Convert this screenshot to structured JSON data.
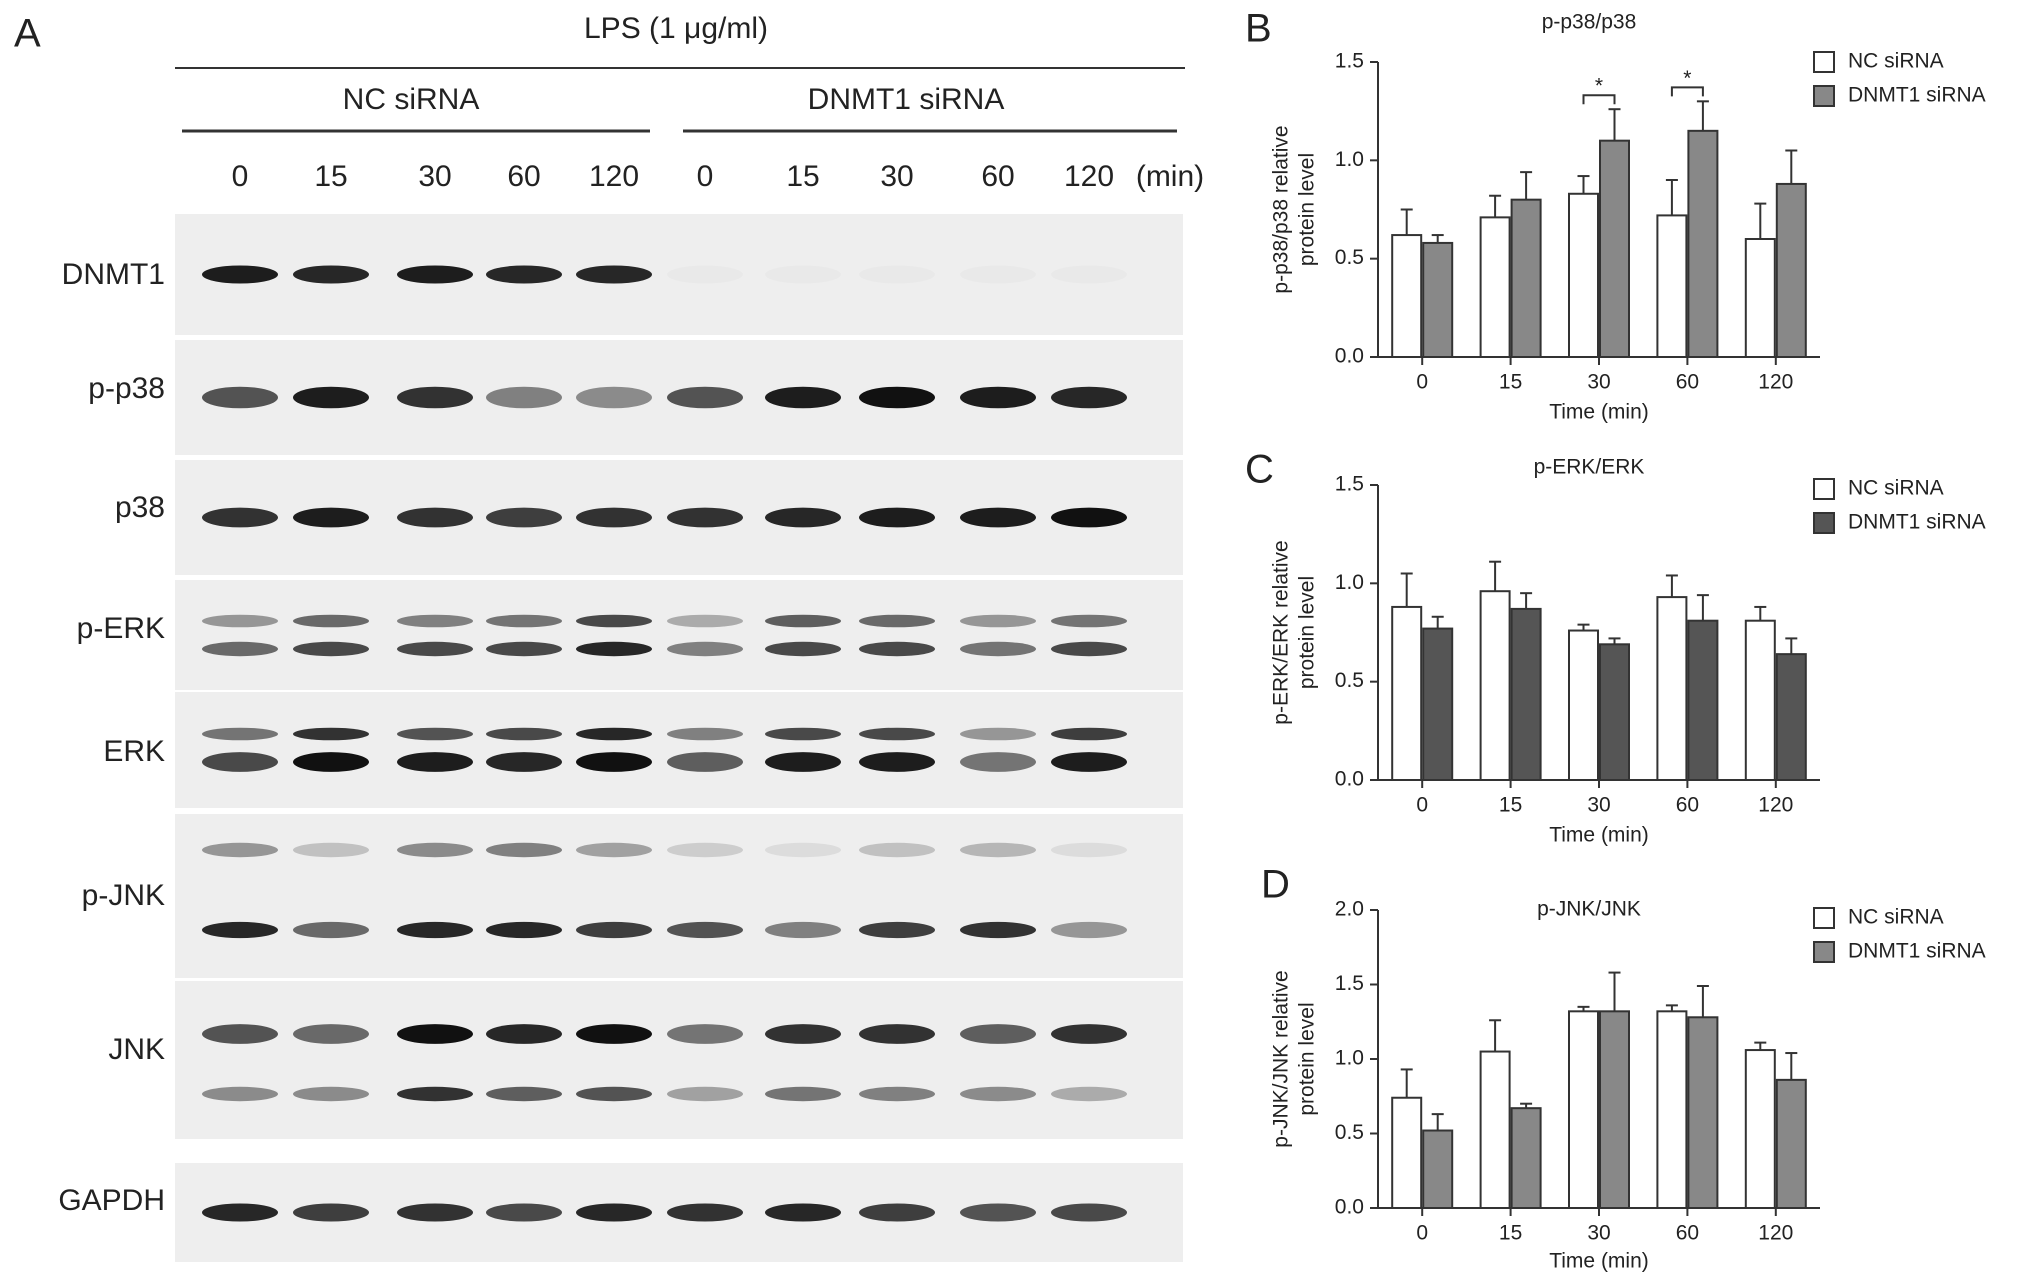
{
  "blot": {
    "panel": "A",
    "header": "LPS (1 μg/ml)",
    "groups": [
      "NC siRNA",
      "DNMT1 siRNA"
    ],
    "lanes": [
      "0",
      "15",
      "30",
      "60",
      "120",
      "0",
      "15",
      "30",
      "60",
      "120"
    ],
    "lane_unit": "(min)",
    "rows": [
      "DNMT1",
      "p-p38",
      "p38",
      "p-ERK",
      "ERK",
      "p-JNK",
      "JNK",
      "GAPDH"
    ]
  },
  "chart_data": [
    {
      "type": "bar",
      "panel": "B",
      "title": "p-p38/p38",
      "ylabel": [
        "p-p38/p38 relative",
        "protein level"
      ],
      "xlabel": "Time (min)",
      "categories": [
        "0",
        "15",
        "30",
        "60",
        "120"
      ],
      "series": [
        {
          "name": "NC siRNA",
          "color": "#ffffff",
          "values": [
            0.62,
            0.71,
            0.83,
            0.72,
            0.6
          ],
          "errors": [
            0.13,
            0.11,
            0.09,
            0.18,
            0.18
          ]
        },
        {
          "name": "DNMT1 siRNA",
          "color": "#888888",
          "values": [
            0.58,
            0.8,
            1.1,
            1.15,
            0.88
          ],
          "errors": [
            0.04,
            0.14,
            0.16,
            0.15,
            0.17
          ]
        }
      ],
      "annotations": [
        {
          "text": "*",
          "category": "30"
        },
        {
          "text": "*",
          "category": "60"
        }
      ],
      "ylim": [
        0,
        1.5
      ],
      "yticks": [
        {
          "value": 0,
          "label": "0.0"
        },
        0.5,
        {
          "value": 1,
          "label": "1.0"
        },
        1.5
      ],
      "legend": "right"
    },
    {
      "type": "bar",
      "panel": "C",
      "title": "p-ERK/ERK",
      "ylabel": [
        "p-ERK/ERK relative",
        "protein level"
      ],
      "xlabel": "Time (min)",
      "categories": [
        "0",
        "15",
        "30",
        "60",
        "120"
      ],
      "series": [
        {
          "name": "NC siRNA",
          "color": "#ffffff",
          "values": [
            0.88,
            0.96,
            0.76,
            0.93,
            0.81
          ],
          "errors": [
            0.17,
            0.15,
            0.03,
            0.11,
            0.07
          ]
        },
        {
          "name": "DNMT1 siRNA",
          "color": "#555555",
          "values": [
            0.77,
            0.87,
            0.69,
            0.81,
            0.64
          ],
          "errors": [
            0.06,
            0.08,
            0.03,
            0.13,
            0.08
          ]
        }
      ],
      "ylim": [
        0,
        1.5
      ],
      "yticks": [
        {
          "value": 0,
          "label": "0.0"
        },
        0.5,
        {
          "value": 1,
          "label": "1.0"
        },
        1.5
      ],
      "legend": "right"
    },
    {
      "type": "bar",
      "panel": "D",
      "title": "p-JNK/JNK",
      "ylabel": [
        "p-JNK/JNK relative",
        "protein level"
      ],
      "xlabel": "Time (min)",
      "categories": [
        "0",
        "15",
        "30",
        "60",
        "120"
      ],
      "series": [
        {
          "name": "NC siRNA",
          "color": "#ffffff",
          "values": [
            0.74,
            1.05,
            1.32,
            1.32,
            1.06
          ],
          "errors": [
            0.19,
            0.21,
            0.03,
            0.04,
            0.05
          ]
        },
        {
          "name": "DNMT1 siRNA",
          "color": "#888888",
          "values": [
            0.52,
            0.67,
            1.32,
            1.28,
            0.86
          ],
          "errors": [
            0.11,
            0.03,
            0.26,
            0.21,
            0.18
          ]
        }
      ],
      "ylim": [
        0,
        2
      ],
      "yticks": [
        {
          "value": 0,
          "label": "0.0"
        },
        0.5,
        {
          "value": 1,
          "label": "1.0"
        },
        1.5,
        {
          "value": 2,
          "label": "2.0"
        }
      ],
      "legend": "right"
    }
  ]
}
